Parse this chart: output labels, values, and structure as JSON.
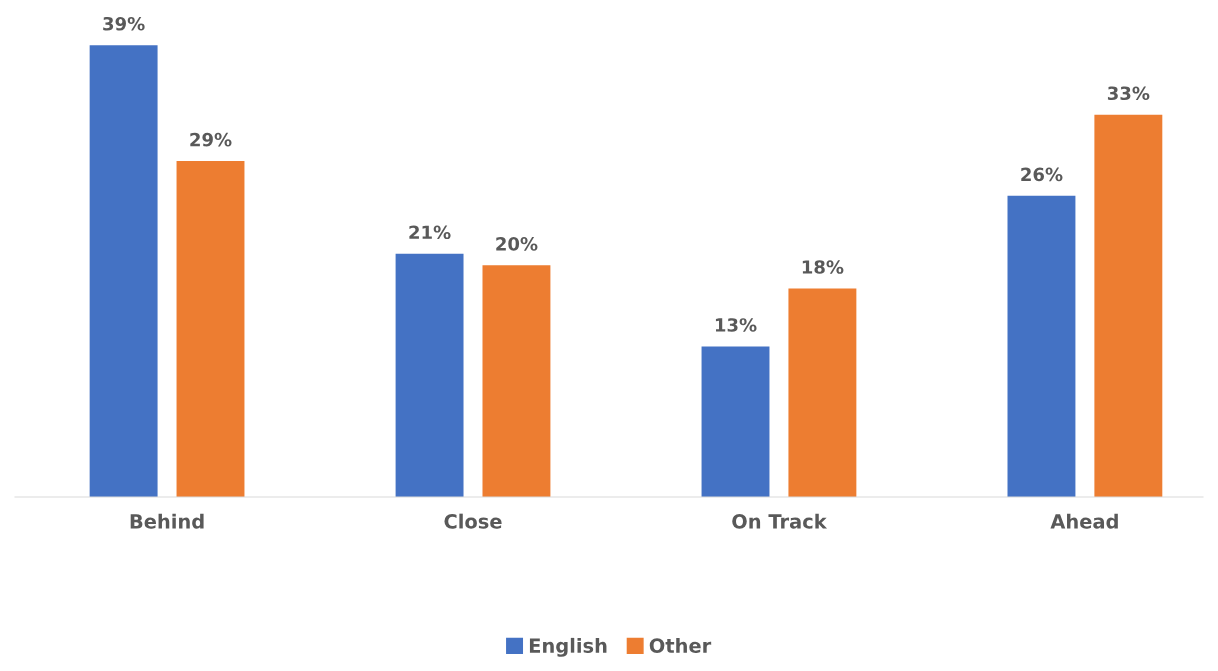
{
  "chart_data": {
    "type": "bar",
    "categories": [
      "Behind",
      "Close",
      "On Track",
      "Ahead"
    ],
    "series": [
      {
        "name": "English",
        "color": "#4472c4",
        "values": [
          39,
          21,
          13,
          26
        ],
        "value_labels": [
          "39%",
          "21%",
          "13%",
          "26%"
        ]
      },
      {
        "name": "Other",
        "color": "#ed7d31",
        "values": [
          29,
          20,
          18,
          33
        ],
        "value_labels": [
          "29%",
          "20%",
          "18%",
          "33%"
        ]
      }
    ],
    "grid": false,
    "legend": "bottom"
  }
}
